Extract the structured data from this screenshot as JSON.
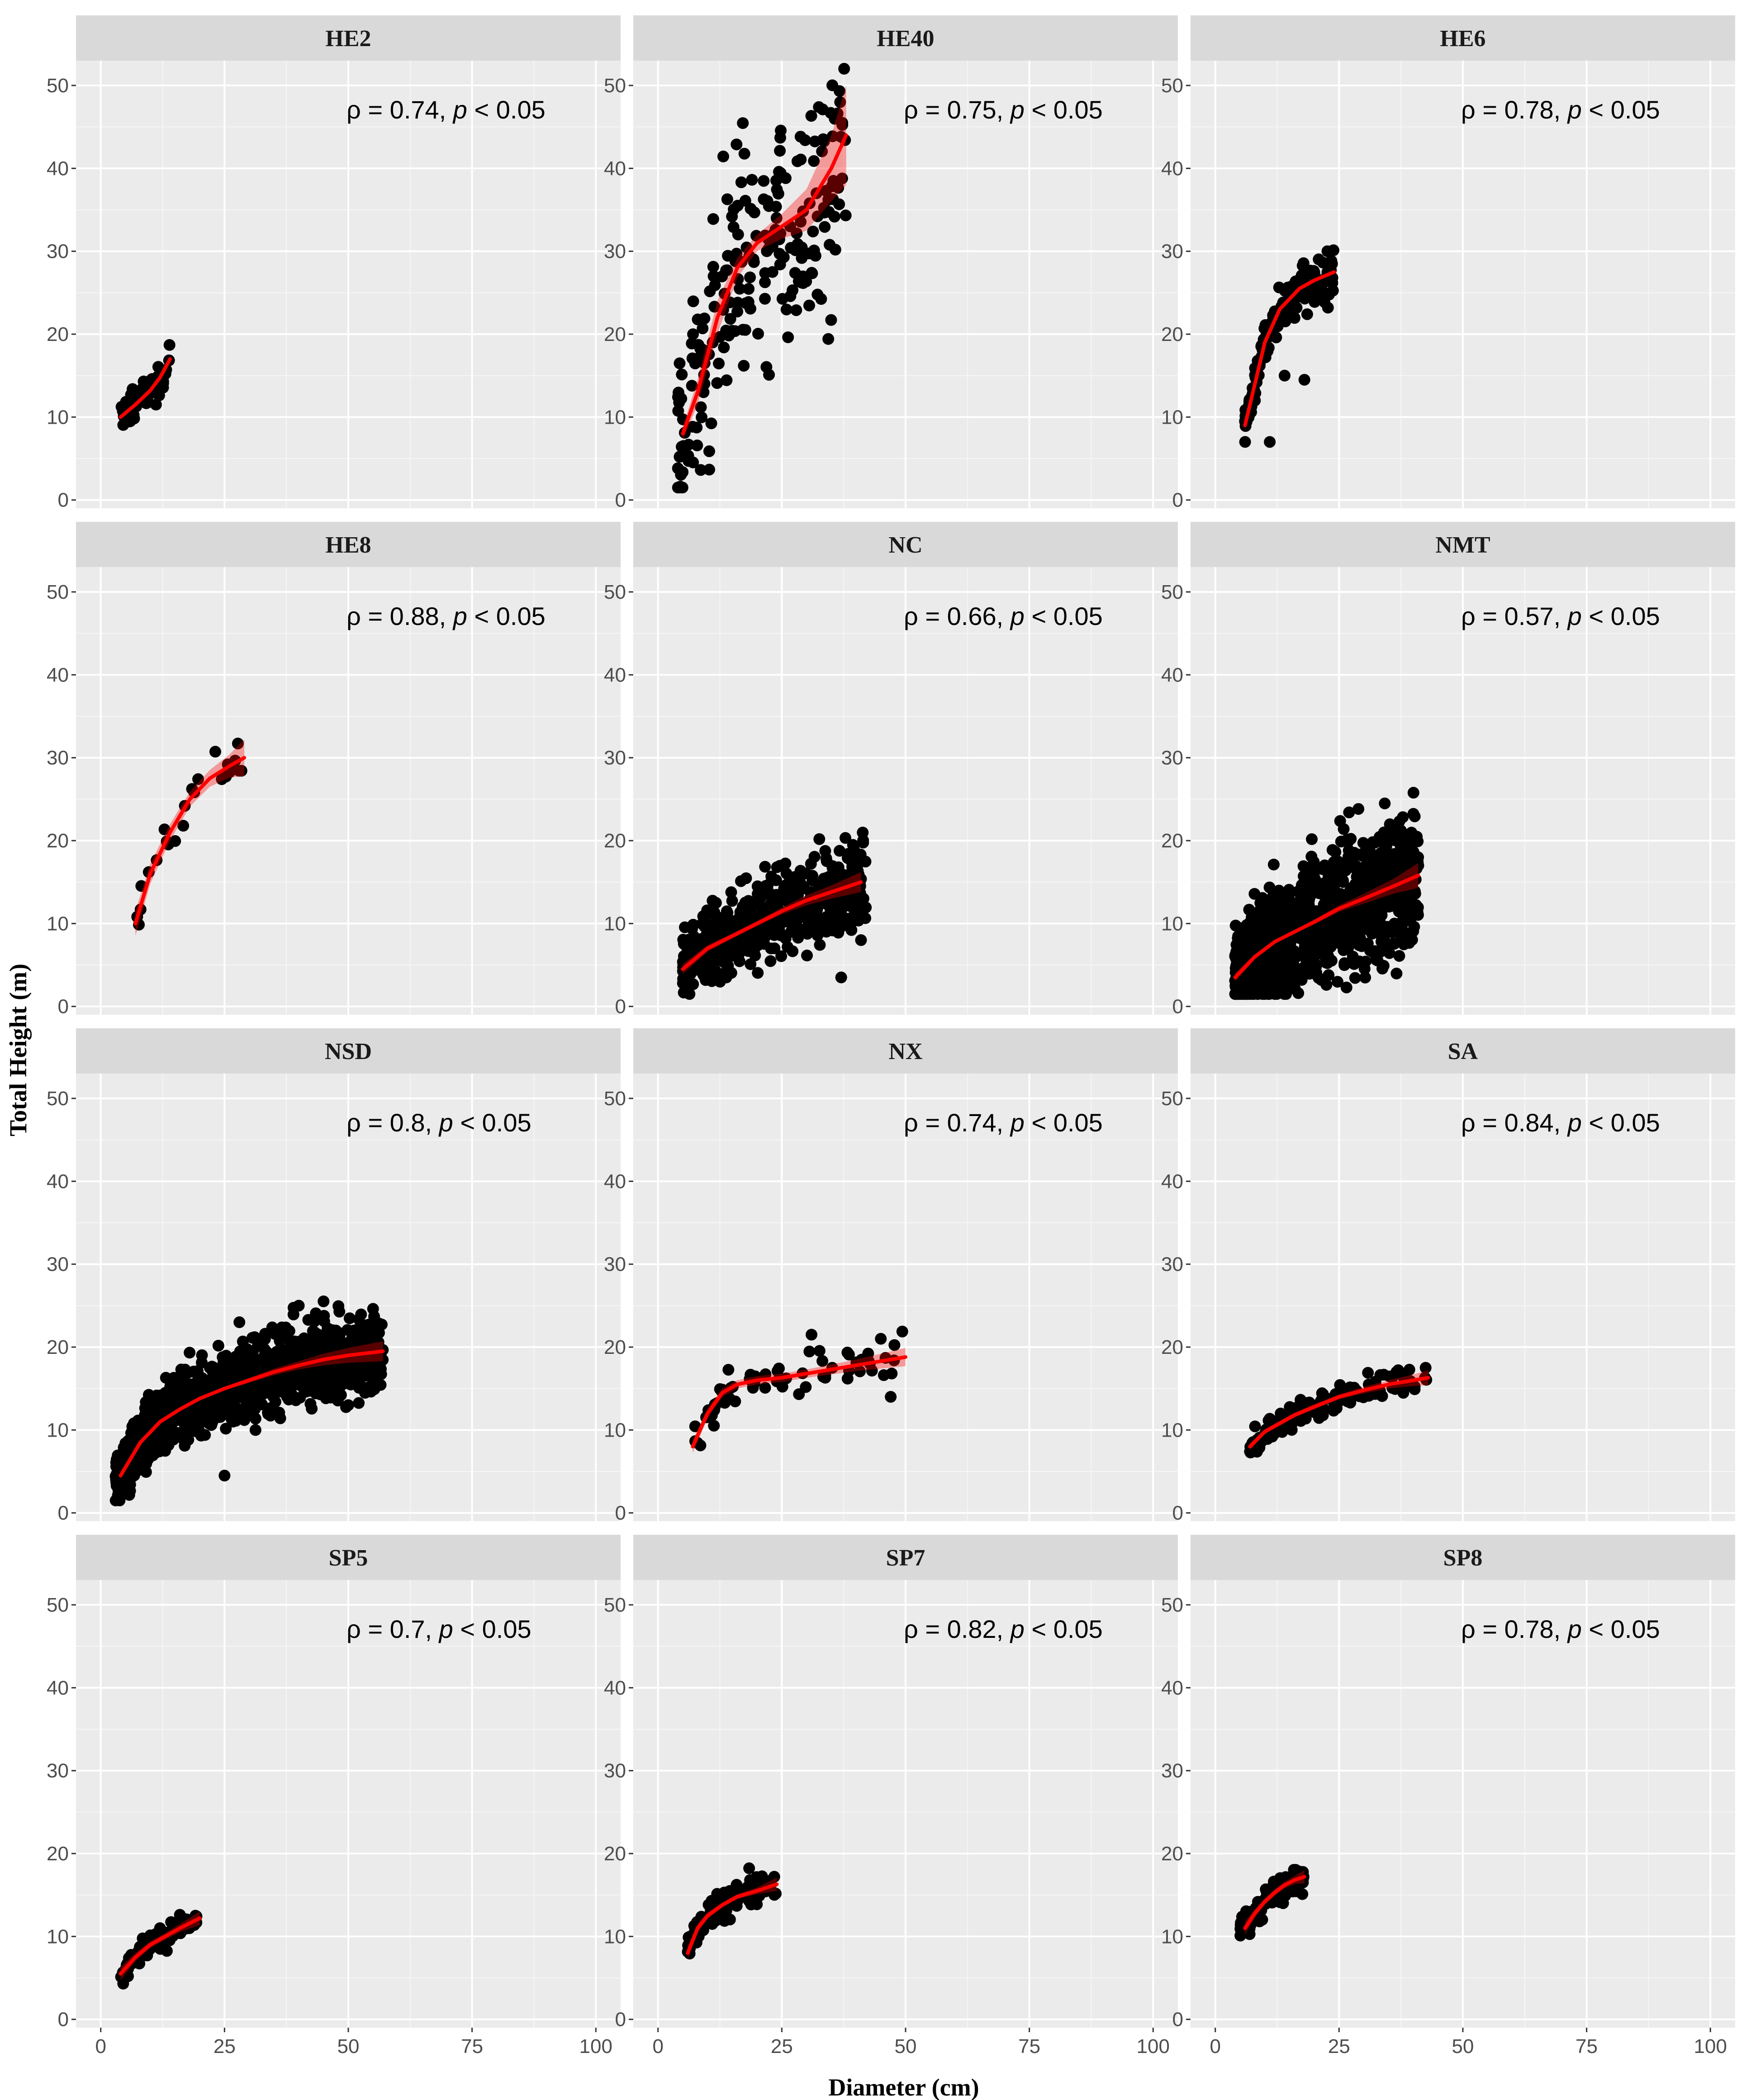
{
  "chart_data": {
    "type": "scatter",
    "layout": "faceted 4x3",
    "xlabel": "Diameter (cm)",
    "ylabel": "Total Height (m)",
    "xlim": [
      -5,
      105
    ],
    "ylim": [
      -1,
      53
    ],
    "x_ticks": [
      0,
      25,
      50,
      75,
      100
    ],
    "y_ticks": [
      0,
      10,
      20,
      30,
      40,
      50
    ],
    "grid": true,
    "fit_color": "#ff0000",
    "point_color": "#000000",
    "band_color": "#ff0000",
    "panel_color": "#ebebeb",
    "strip_color": "#d9d9d9",
    "panels": [
      {
        "name": "HE2",
        "rho": "0.74",
        "p": "p",
        "p_text": " < 0.05",
        "fit": [
          [
            4,
            10
          ],
          [
            7,
            11.5
          ],
          [
            10,
            13.2
          ],
          [
            12,
            14.8
          ],
          [
            14,
            17
          ]
        ],
        "cloud": {
          "n": 60,
          "x": [
            4,
            14
          ],
          "spread": 1.3
        }
      },
      {
        "name": "HE40",
        "rho": "0.75",
        "p": "p",
        "p_text": " < 0.05",
        "fit": [
          [
            5,
            8
          ],
          [
            8,
            13
          ],
          [
            12,
            22
          ],
          [
            16,
            28
          ],
          [
            20,
            31
          ],
          [
            25,
            33
          ],
          [
            30,
            35
          ],
          [
            35,
            40
          ],
          [
            38,
            44
          ]
        ],
        "band": [
          0.8,
          1.5,
          2.0,
          1.2,
          1.0,
          1.5,
          2.5,
          4.0,
          6.0
        ],
        "cloud": {
          "n": 230,
          "x": [
            4,
            38
          ],
          "spread": 9
        }
      },
      {
        "name": "HE6",
        "rho": "0.78",
        "p": "p",
        "p_text": " < 0.05",
        "fit": [
          [
            6,
            9
          ],
          [
            8,
            14
          ],
          [
            10,
            19
          ],
          [
            13,
            23
          ],
          [
            17,
            25.5
          ],
          [
            20,
            26.5
          ],
          [
            24,
            27.5
          ]
        ],
        "cloud": {
          "n": 150,
          "x": [
            6,
            24
          ],
          "spread": 1.6
        },
        "outliers": [
          [
            11,
            7
          ],
          [
            18,
            14.5
          ],
          [
            14,
            15
          ],
          [
            8,
            12
          ]
        ]
      },
      {
        "name": "HE8",
        "rho": "0.88",
        "p": "p",
        "p_text": " < 0.05",
        "fit": [
          [
            7,
            10
          ],
          [
            10,
            16
          ],
          [
            14,
            21
          ],
          [
            18,
            25
          ],
          [
            22,
            27.5
          ],
          [
            26,
            29
          ],
          [
            29,
            30
          ]
        ],
        "band": [
          1.5,
          1.2,
          1.0,
          0.9,
          1.0,
          1.4,
          2.2
        ],
        "cloud": {
          "n": 25,
          "x": [
            7,
            29
          ],
          "spread": 1.6
        }
      },
      {
        "name": "NC",
        "rho": "0.66",
        "p": "p",
        "p_text": " < 0.05",
        "fit": [
          [
            5,
            4.5
          ],
          [
            10,
            7
          ],
          [
            15,
            8.5
          ],
          [
            20,
            10
          ],
          [
            25,
            11.5
          ],
          [
            30,
            12.8
          ],
          [
            35,
            13.8
          ],
          [
            41,
            15
          ]
        ],
        "band": [
          0.6,
          0.4,
          0.3,
          0.3,
          0.4,
          0.6,
          0.8,
          1.2
        ],
        "cloud": {
          "n": 520,
          "x": [
            5,
            42
          ],
          "spread": 3.2
        },
        "outliers": [
          [
            37,
            3.5
          ],
          [
            41,
            8
          ]
        ]
      },
      {
        "name": "NMT",
        "rho": "0.57",
        "p": "p",
        "p_text": " < 0.05",
        "fit": [
          [
            4,
            3.5
          ],
          [
            8,
            6
          ],
          [
            12,
            7.8
          ],
          [
            16,
            9
          ],
          [
            20,
            10.2
          ],
          [
            25,
            11.8
          ],
          [
            30,
            13
          ],
          [
            36,
            14.5
          ],
          [
            41,
            15.8
          ]
        ],
        "band": [
          0.5,
          0.3,
          0.2,
          0.2,
          0.3,
          0.4,
          0.6,
          0.9,
          1.5
        ],
        "cloud": {
          "n": 1100,
          "x": [
            4,
            41
          ],
          "spread": 4.5
        },
        "outliers": [
          [
            39,
            8
          ],
          [
            41,
            17
          ]
        ]
      },
      {
        "name": "NSD",
        "rho": "0.8",
        "p": "p",
        "p_text": " < 0.05",
        "fit": [
          [
            4,
            4.5
          ],
          [
            8,
            8.5
          ],
          [
            12,
            11
          ],
          [
            16,
            12.5
          ],
          [
            20,
            13.8
          ],
          [
            25,
            15
          ],
          [
            30,
            16
          ],
          [
            35,
            17
          ],
          [
            40,
            17.8
          ],
          [
            45,
            18.5
          ],
          [
            50,
            19
          ],
          [
            57,
            19.5
          ]
        ],
        "band": [
          0.4,
          0.2,
          0.2,
          0.2,
          0.2,
          0.2,
          0.3,
          0.4,
          0.5,
          0.7,
          0.9,
          1.2
        ],
        "cloud": {
          "n": 1200,
          "x": [
            3,
            57
          ],
          "spread": 2.8
        },
        "outliers": [
          [
            40,
            25
          ],
          [
            28,
            23
          ],
          [
            25,
            4.5
          ],
          [
            45,
            15
          ],
          [
            50,
            13
          ],
          [
            53,
            20
          ]
        ]
      },
      {
        "name": "NX",
        "rho": "0.74",
        "p": "p",
        "p_text": " < 0.05",
        "fit": [
          [
            7,
            8
          ],
          [
            10,
            12
          ],
          [
            13,
            14.5
          ],
          [
            16,
            15.5
          ],
          [
            20,
            16
          ],
          [
            25,
            16.3
          ],
          [
            30,
            16.8
          ],
          [
            35,
            17.3
          ],
          [
            40,
            17.8
          ],
          [
            45,
            18.3
          ],
          [
            50,
            18.8
          ]
        ],
        "band": [
          0.8,
          0.6,
          0.5,
          0.5,
          0.5,
          0.5,
          0.5,
          0.6,
          0.7,
          0.9,
          1.1
        ],
        "cloud": {
          "n": 70,
          "x": [
            7,
            50
          ],
          "spread": 1.4
        },
        "outliers": [
          [
            31,
            21.5
          ],
          [
            45,
            21
          ],
          [
            47,
            14
          ]
        ]
      },
      {
        "name": "SA",
        "rho": "0.84",
        "p": "p",
        "p_text": " < 0.05",
        "fit": [
          [
            7,
            8
          ],
          [
            10,
            9.8
          ],
          [
            13,
            10.8
          ],
          [
            16,
            11.8
          ],
          [
            20,
            12.8
          ],
          [
            25,
            14
          ],
          [
            30,
            14.8
          ],
          [
            35,
            15.5
          ],
          [
            40,
            16
          ],
          [
            43,
            16.3
          ]
        ],
        "band": [
          0.4,
          0.3,
          0.3,
          0.3,
          0.3,
          0.3,
          0.4,
          0.5,
          0.7,
          0.9
        ],
        "cloud": {
          "n": 130,
          "x": [
            7,
            43
          ],
          "spread": 1.0
        }
      },
      {
        "name": "SP5",
        "rho": "0.7",
        "p": "p",
        "p_text": " < 0.05",
        "fit": [
          [
            4,
            5.5
          ],
          [
            7,
            7.5
          ],
          [
            10,
            9
          ],
          [
            13,
            10
          ],
          [
            16,
            11
          ],
          [
            20,
            12.2
          ]
        ],
        "band": [
          0.8,
          0.5,
          0.4,
          0.4,
          0.5,
          0.8
        ],
        "cloud": {
          "n": 90,
          "x": [
            4,
            20
          ],
          "spread": 1.0
        }
      },
      {
        "name": "SP7",
        "rho": "0.82",
        "p": "p",
        "p_text": " < 0.05",
        "fit": [
          [
            6,
            8
          ],
          [
            8,
            11
          ],
          [
            10,
            12.5
          ],
          [
            13,
            13.8
          ],
          [
            16,
            14.8
          ],
          [
            20,
            15.5
          ],
          [
            24,
            16.3
          ]
        ],
        "band": [
          0.8,
          0.5,
          0.4,
          0.3,
          0.3,
          0.4,
          0.8
        ],
        "cloud": {
          "n": 110,
          "x": [
            6,
            24
          ],
          "spread": 1.1
        }
      },
      {
        "name": "SP8",
        "rho": "0.78",
        "p": "p",
        "p_text": " < 0.05",
        "fit": [
          [
            6,
            11
          ],
          [
            8,
            12.8
          ],
          [
            10,
            14.2
          ],
          [
            12,
            15.3
          ],
          [
            14,
            16.2
          ],
          [
            16,
            16.8
          ],
          [
            18,
            17.2
          ]
        ],
        "band": [
          0.8,
          0.5,
          0.4,
          0.4,
          0.4,
          0.5,
          0.8
        ],
        "cloud": {
          "n": 90,
          "x": [
            5,
            18
          ],
          "spread": 1.2
        }
      }
    ]
  }
}
